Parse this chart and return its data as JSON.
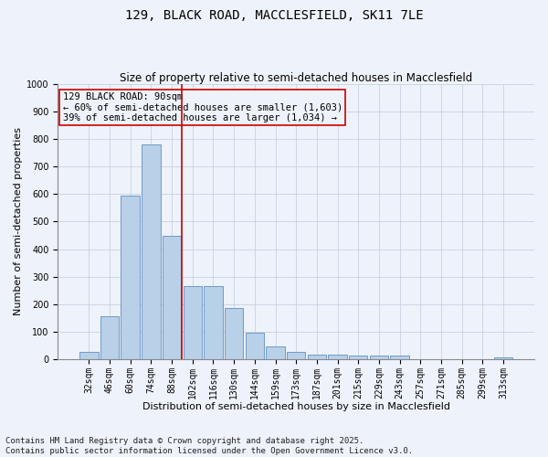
{
  "title": "129, BLACK ROAD, MACCLESFIELD, SK11 7LE",
  "subtitle": "Size of property relative to semi-detached houses in Macclesfield",
  "xlabel": "Distribution of semi-detached houses by size in Macclesfield",
  "ylabel": "Number of semi-detached properties",
  "categories": [
    "32sqm",
    "46sqm",
    "60sqm",
    "74sqm",
    "88sqm",
    "102sqm",
    "116sqm",
    "130sqm",
    "144sqm",
    "159sqm",
    "173sqm",
    "187sqm",
    "201sqm",
    "215sqm",
    "229sqm",
    "243sqm",
    "257sqm",
    "271sqm",
    "285sqm",
    "299sqm",
    "313sqm"
  ],
  "values": [
    25,
    155,
    595,
    780,
    450,
    265,
    265,
    185,
    95,
    47,
    28,
    15,
    15,
    13,
    12,
    12,
    0,
    0,
    0,
    0,
    8
  ],
  "bar_color": "#b8d0e8",
  "bar_edge_color": "#6090c0",
  "vline_color": "#cc0000",
  "vline_x": 4.5,
  "ylim": [
    0,
    1000
  ],
  "yticks": [
    0,
    100,
    200,
    300,
    400,
    500,
    600,
    700,
    800,
    900,
    1000
  ],
  "annotation_title": "129 BLACK ROAD: 90sqm",
  "annotation_line1": "← 60% of semi-detached houses are smaller (1,603)",
  "annotation_line2": "39% of semi-detached houses are larger (1,034) →",
  "annotation_box_color": "#cc0000",
  "footnote1": "Contains HM Land Registry data © Crown copyright and database right 2025.",
  "footnote2": "Contains public sector information licensed under the Open Government Licence v3.0.",
  "background_color": "#eef2fa",
  "grid_color": "#c0ccdd",
  "title_fontsize": 10,
  "subtitle_fontsize": 8.5,
  "axis_label_fontsize": 8,
  "tick_fontsize": 7,
  "annotation_fontsize": 7.5,
  "footnote_fontsize": 6.5
}
